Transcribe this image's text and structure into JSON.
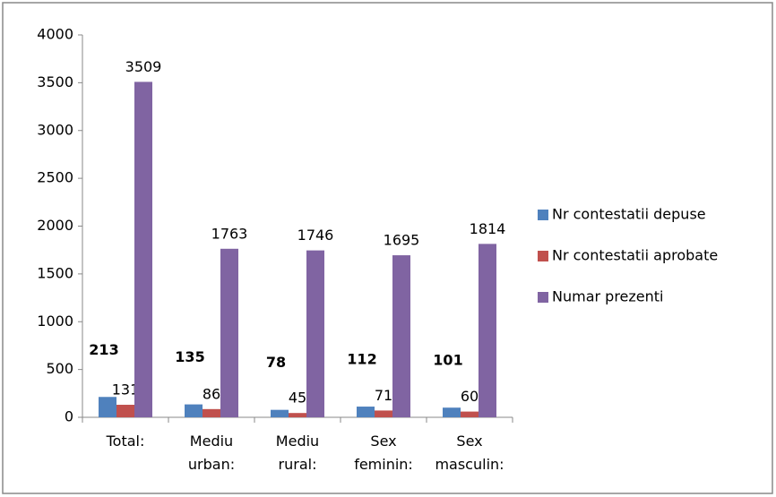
{
  "chart_data": {
    "type": "bar",
    "categories": [
      "Total:",
      "Mediu urban:",
      "Mediu rural:",
      "Sex feminin:",
      "Sex masculin:"
    ],
    "series": [
      {
        "name": "Nr contestatii depuse",
        "color": "#4f81bd",
        "values": [
          213,
          135,
          78,
          112,
          101
        ]
      },
      {
        "name": "Nr contestatii aprobate",
        "color": "#c0504d",
        "values": [
          131,
          86,
          45,
          71,
          60
        ]
      },
      {
        "name": "Numar prezenti",
        "color": "#8064a2",
        "values": [
          3509,
          1763,
          1746,
          1695,
          1814
        ]
      }
    ],
    "ylim": [
      0,
      4000
    ],
    "yticks": [
      0,
      500,
      1000,
      1500,
      2000,
      2500,
      3000,
      3500,
      4000
    ],
    "grid": false,
    "legend": "right"
  }
}
